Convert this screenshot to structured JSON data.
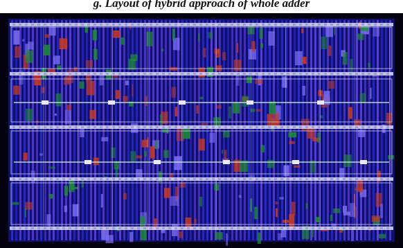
{
  "caption": {
    "text": "g. Layout of hybrid approach of whole adder"
  },
  "layout_view": {
    "icon": "chip-layout-icon",
    "colors": {
      "background": "#05030f",
      "substrate": "#10106a",
      "metal1": "#2b2bd8",
      "metal2": "#5a3fe6",
      "poly": "#c43a28",
      "diffusion": "#1f8a3a",
      "rail": "#dcdcf4",
      "contact": "#e8e8f8",
      "outline": "#c8c8e8"
    }
  }
}
